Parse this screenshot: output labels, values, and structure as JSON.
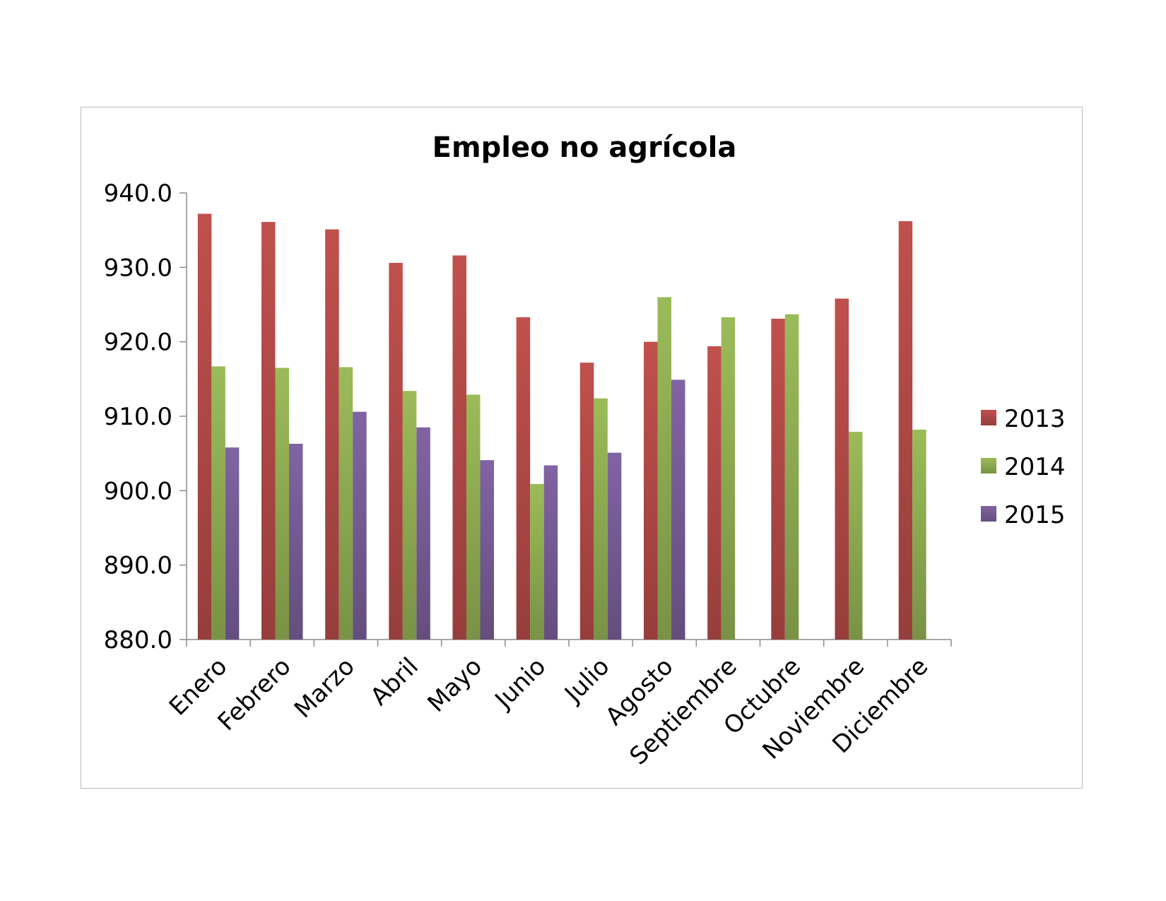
{
  "chart_data": {
    "type": "bar",
    "title": "Empleo no agrícola",
    "xlabel": "",
    "ylabel": "",
    "ylim": [
      880,
      940
    ],
    "yticks": [
      "880.0",
      "890.0",
      "900.0",
      "910.0",
      "920.0",
      "930.0",
      "940.0"
    ],
    "grid": false,
    "legend_position": "right",
    "categories": [
      "Enero",
      "Febrero",
      "Marzo",
      "Abril",
      "Mayo",
      "Junio",
      "Julio",
      "Agosto",
      "Septiembre",
      "Octubre",
      "Noviembre",
      "Diciembre"
    ],
    "series": [
      {
        "name": "2013",
        "color": "#c0504d",
        "values": [
          937.2,
          936.1,
          935.1,
          930.6,
          931.6,
          923.3,
          917.2,
          920.0,
          919.4,
          923.1,
          925.8,
          936.2
        ]
      },
      {
        "name": "2014",
        "color": "#9bbb59",
        "values": [
          916.7,
          916.5,
          916.6,
          913.4,
          912.9,
          900.9,
          912.4,
          926.0,
          923.3,
          923.7,
          907.9,
          908.2
        ]
      },
      {
        "name": "2015",
        "color": "#8064a2",
        "values": [
          905.8,
          906.3,
          910.6,
          908.5,
          904.1,
          903.4,
          905.1,
          914.9,
          null,
          null,
          null,
          null
        ]
      }
    ]
  }
}
